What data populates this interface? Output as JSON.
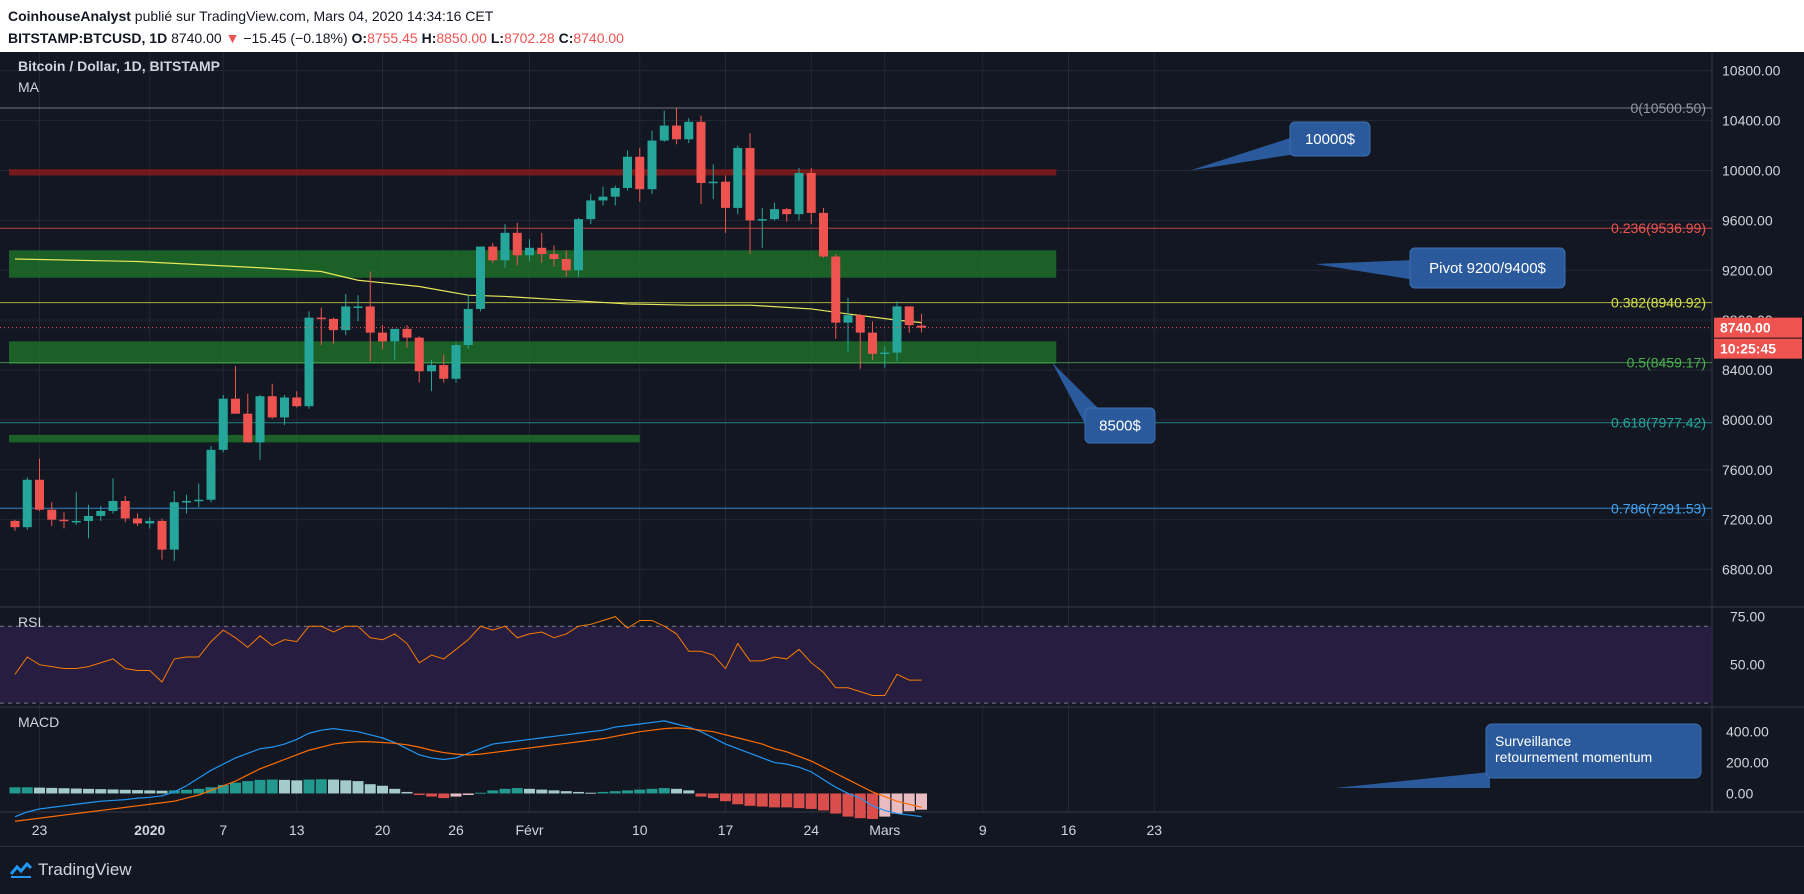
{
  "header": {
    "author": "CoinhouseAnalyst",
    "published": "publié sur TradingView.com, Mars 04, 2020 14:34:16 CET",
    "symbol": "BITSTAMP:BTCUSD, 1D",
    "last": "8740.00",
    "change_arrow": "▼",
    "change": "−15.45 (−0.18%)",
    "o_label": "O:",
    "o_value": "8755.45",
    "h_label": "H:",
    "h_value": "8850.00",
    "l_label": "L:",
    "l_value": "8702.28",
    "c_label": "C:",
    "c_value": "8740.00"
  },
  "footer": {
    "brand": "TradingView",
    "icon": "tradingview-logo-icon"
  },
  "colors": {
    "up": "#26a69a",
    "down": "#ef5350",
    "ma": "#e8e85c",
    "rsi": "#f57c00",
    "macd": "#2196f3",
    "signal": "#ff6d00",
    "bg": "#131722",
    "support_zone": "#1e7a2a",
    "resistance_zone": "#8b1a1a"
  },
  "chart_data": [
    {
      "type": "candlestick",
      "title": "Bitcoin / Dollar, 1D, BITSTAMP",
      "indicator_label": "MA",
      "ylim": [
        6500,
        10950
      ],
      "yticks": [
        "10800.00",
        "10400.00",
        "10000.00",
        "9600.00",
        "9200.00",
        "8800.00",
        "8400.00",
        "8000.00",
        "7600.00",
        "7200.00",
        "6800.00"
      ],
      "xticks": [
        {
          "label": "23",
          "date": "2019-12-23",
          "bold": false
        },
        {
          "label": "2020",
          "date": "2020-01-01",
          "bold": true
        },
        {
          "label": "7",
          "date": "2020-01-07",
          "bold": false
        },
        {
          "label": "13",
          "date": "2020-01-13",
          "bold": false
        },
        {
          "label": "20",
          "date": "2020-01-20",
          "bold": false
        },
        {
          "label": "26",
          "date": "2020-01-26",
          "bold": false
        },
        {
          "label": "Févr",
          "date": "2020-02-01",
          "bold": false
        },
        {
          "label": "10",
          "date": "2020-02-10",
          "bold": false
        },
        {
          "label": "17",
          "date": "2020-02-17",
          "bold": false
        },
        {
          "label": "24",
          "date": "2020-02-24",
          "bold": false
        },
        {
          "label": "Mars",
          "date": "2020-03-01",
          "bold": false
        },
        {
          "label": "9",
          "date": "2020-03-09",
          "bold": false
        },
        {
          "label": "16",
          "date": "2020-03-16",
          "bold": false
        },
        {
          "label": "23",
          "date": "2020-03-23",
          "bold": false
        }
      ],
      "candles_start": "2019-12-21",
      "candles": [
        [
          7190,
          7200,
          7110,
          7140
        ],
        [
          7140,
          7540,
          7120,
          7520
        ],
        [
          7520,
          7690,
          7270,
          7280
        ],
        [
          7280,
          7340,
          7150,
          7200
        ],
        [
          7200,
          7260,
          7130,
          7190
        ],
        [
          7190,
          7420,
          7160,
          7190
        ],
        [
          7190,
          7320,
          7050,
          7230
        ],
        [
          7230,
          7310,
          7190,
          7270
        ],
        [
          7270,
          7530,
          7250,
          7350
        ],
        [
          7350,
          7390,
          7180,
          7210
        ],
        [
          7210,
          7250,
          7150,
          7170
        ],
        [
          7170,
          7220,
          7130,
          7190
        ],
        [
          7190,
          7210,
          6880,
          6960
        ],
        [
          6960,
          7430,
          6870,
          7340
        ],
        [
          7340,
          7400,
          7250,
          7350
        ],
        [
          7350,
          7490,
          7300,
          7360
        ],
        [
          7360,
          7790,
          7340,
          7760
        ],
        [
          7760,
          8200,
          7740,
          8170
        ],
        [
          8170,
          8430,
          8050,
          8050
        ],
        [
          8050,
          8210,
          7860,
          7820
        ],
        [
          7820,
          8200,
          7680,
          8190
        ],
        [
          8190,
          8290,
          8010,
          8020
        ],
        [
          8020,
          8200,
          7960,
          8180
        ],
        [
          8180,
          8230,
          8100,
          8110
        ],
        [
          8110,
          8870,
          8090,
          8820
        ],
        [
          8820,
          8900,
          8600,
          8810
        ],
        [
          8810,
          8820,
          8610,
          8720
        ],
        [
          8720,
          9010,
          8680,
          8910
        ],
        [
          8910,
          9000,
          8790,
          8910
        ],
        [
          8910,
          9190,
          8470,
          8700
        ],
        [
          8700,
          8760,
          8570,
          8630
        ],
        [
          8630,
          8720,
          8480,
          8730
        ],
        [
          8730,
          8760,
          8580,
          8660
        ],
        [
          8660,
          8670,
          8300,
          8390
        ],
        [
          8390,
          8480,
          8230,
          8440
        ],
        [
          8440,
          8520,
          8300,
          8330
        ],
        [
          8330,
          8620,
          8300,
          8600
        ],
        [
          8600,
          9000,
          8570,
          8890
        ],
        [
          8890,
          9390,
          8870,
          9390
        ],
        [
          9390,
          9420,
          9260,
          9280
        ],
        [
          9280,
          9570,
          9220,
          9500
        ],
        [
          9500,
          9580,
          9240,
          9320
        ],
        [
          9320,
          9450,
          9270,
          9380
        ],
        [
          9380,
          9500,
          9260,
          9330
        ],
        [
          9330,
          9400,
          9230,
          9290
        ],
        [
          9290,
          9360,
          9150,
          9200
        ],
        [
          9200,
          9620,
          9150,
          9610
        ],
        [
          9610,
          9810,
          9570,
          9760
        ],
        [
          9760,
          9870,
          9720,
          9790
        ],
        [
          9790,
          9880,
          9720,
          9860
        ],
        [
          9860,
          10160,
          9840,
          10110
        ],
        [
          10110,
          10180,
          9750,
          9850
        ],
        [
          9850,
          10320,
          9810,
          10240
        ],
        [
          10240,
          10480,
          10230,
          10360
        ],
        [
          10360,
          10500,
          10210,
          10250
        ],
        [
          10250,
          10420,
          10220,
          10390
        ],
        [
          10390,
          10440,
          9730,
          9900
        ],
        [
          9900,
          10050,
          9770,
          9910
        ],
        [
          9910,
          9960,
          9500,
          9700
        ],
        [
          9700,
          10200,
          9650,
          10180
        ],
        [
          10180,
          10300,
          9330,
          9600
        ],
        [
          9600,
          9700,
          9380,
          9610
        ],
        [
          9610,
          9740,
          9600,
          9690
        ],
        [
          9690,
          9700,
          9590,
          9650
        ],
        [
          9650,
          10020,
          9600,
          9980
        ],
        [
          9980,
          10020,
          9570,
          9660
        ],
        [
          9660,
          9700,
          9300,
          9310
        ],
        [
          9310,
          9330,
          8650,
          8780
        ],
        [
          8780,
          8980,
          8550,
          8840
        ],
        [
          8840,
          8850,
          8410,
          8700
        ],
        [
          8700,
          8790,
          8480,
          8530
        ],
        [
          8530,
          8590,
          8420,
          8540
        ],
        [
          8540,
          8950,
          8470,
          8910
        ],
        [
          8910,
          8910,
          8700,
          8760
        ],
        [
          8755.45,
          8850,
          8702.28,
          8740
        ]
      ],
      "moving_average": [
        [
          0,
          9290
        ],
        [
          10,
          9270
        ],
        [
          20,
          9220
        ],
        [
          25,
          9190
        ],
        [
          28,
          9120
        ],
        [
          33,
          9070
        ],
        [
          37,
          9000
        ],
        [
          40,
          8990
        ],
        [
          45,
          8960
        ],
        [
          50,
          8930
        ],
        [
          55,
          8920
        ],
        [
          60,
          8920
        ],
        [
          65,
          8890
        ],
        [
          68,
          8850
        ],
        [
          72,
          8800
        ],
        [
          74,
          8780
        ]
      ],
      "zones": [
        {
          "from": 9140,
          "to": 9360,
          "start": 0,
          "end": 85,
          "kind": "support_zone"
        },
        {
          "from": 8450,
          "to": 8630,
          "start": 0,
          "end": 85,
          "kind": "support_zone"
        },
        {
          "from": 7820,
          "to": 7880,
          "start": 0,
          "end": 51,
          "kind": "support_zone"
        },
        {
          "from": 9960,
          "to": 10010,
          "start": 0,
          "end": 85,
          "kind": "resistance_zone"
        }
      ],
      "fib_levels": [
        {
          "ratio": "0",
          "price": 10500.5,
          "label": "0(10500.50)",
          "color": "#9598a1"
        },
        {
          "ratio": "0.236",
          "price": 9536.99,
          "label": "0.236(9536.99)",
          "color": "#ef5350"
        },
        {
          "ratio": "0.382",
          "price": 8940.92,
          "label": "0.382(8940.92)",
          "color": "#d7e14c"
        },
        {
          "ratio": "0.5",
          "price": 8459.17,
          "label": "0.5(8459.17)",
          "color": "#4caf50"
        },
        {
          "ratio": "0.618",
          "price": 7977.42,
          "label": "0.618(7977.42)",
          "color": "#26a69a"
        },
        {
          "ratio": "0.786",
          "price": 7291.53,
          "label": "0.786(7291.53)",
          "color": "#42a5f5"
        }
      ],
      "annotations": [
        {
          "text": "10000$",
          "price": 10000
        },
        {
          "text": "Pivot 9200/9400$",
          "price": 9250
        },
        {
          "text": "8500$",
          "price": 8460
        }
      ],
      "last_price_label": "8740.00",
      "countdown_label": "10:25:45"
    },
    {
      "type": "line",
      "title": "RSI",
      "ylim": [
        28,
        80
      ],
      "levels": [
        70,
        30
      ],
      "yticks": [
        "75.00",
        "50.00"
      ],
      "values": [
        45,
        54,
        50,
        49,
        48,
        48,
        49,
        51,
        53,
        48,
        47,
        47,
        41,
        53,
        54,
        54,
        62,
        68,
        64,
        59,
        65,
        60,
        63,
        62,
        70,
        70,
        67,
        70,
        70,
        64,
        63,
        66,
        61,
        51,
        55,
        53,
        58,
        63,
        70,
        68,
        70,
        64,
        66,
        67,
        64,
        66,
        70,
        71,
        73,
        75,
        69,
        73,
        73,
        70,
        66,
        57,
        57,
        55,
        48,
        61,
        52,
        52,
        54,
        53,
        58,
        51,
        46,
        38,
        38,
        36,
        34,
        34,
        45,
        42,
        42
      ]
    },
    {
      "type": "bar",
      "title": "MACD",
      "ylim": [
        -120,
        560
      ],
      "yticks": [
        "400.00",
        "200.00",
        "0.00"
      ],
      "histogram": [
        40,
        40,
        38,
        36,
        34,
        32,
        30,
        28,
        26,
        24,
        22,
        20,
        18,
        20,
        24,
        30,
        40,
        55,
        70,
        80,
        88,
        90,
        88,
        85,
        90,
        92,
        90,
        85,
        80,
        60,
        50,
        30,
        10,
        -10,
        -20,
        -30,
        -20,
        -10,
        5,
        20,
        30,
        35,
        30,
        25,
        20,
        15,
        10,
        5,
        10,
        15,
        20,
        25,
        30,
        35,
        30,
        20,
        -20,
        -30,
        -50,
        -70,
        -80,
        -85,
        -90,
        -90,
        -95,
        -100,
        -110,
        -130,
        -150,
        -160,
        -165,
        -150,
        -130,
        -115,
        -105
      ],
      "macd_line": [
        -150,
        -120,
        -100,
        -90,
        -80,
        -70,
        -60,
        -50,
        -45,
        -40,
        -30,
        -25,
        -15,
        10,
        50,
        100,
        150,
        190,
        230,
        260,
        290,
        300,
        320,
        350,
        390,
        410,
        420,
        410,
        400,
        380,
        360,
        330,
        290,
        250,
        230,
        220,
        230,
        260,
        290,
        320,
        330,
        340,
        350,
        360,
        370,
        380,
        390,
        400,
        410,
        430,
        440,
        450,
        460,
        470,
        450,
        430,
        400,
        360,
        320,
        290,
        260,
        230,
        200,
        190,
        170,
        140,
        90,
        40,
        0,
        -30,
        -80,
        -110,
        -130,
        -140,
        -150
      ],
      "signal_line": [
        -180,
        -170,
        -160,
        -150,
        -140,
        -130,
        -120,
        -110,
        -100,
        -90,
        -80,
        -70,
        -60,
        -50,
        -30,
        -10,
        20,
        50,
        80,
        120,
        160,
        190,
        220,
        250,
        280,
        300,
        320,
        330,
        335,
        335,
        330,
        325,
        315,
        300,
        280,
        265,
        255,
        250,
        255,
        265,
        275,
        285,
        295,
        305,
        315,
        325,
        335,
        345,
        355,
        370,
        385,
        400,
        410,
        420,
        425,
        420,
        410,
        400,
        380,
        360,
        340,
        320,
        290,
        270,
        240,
        210,
        170,
        130,
        90,
        50,
        10,
        -20,
        -50,
        -70,
        -90
      ]
    }
  ],
  "callout": {
    "text_1": "Surveillance",
    "text_2": "retournement momentum"
  }
}
